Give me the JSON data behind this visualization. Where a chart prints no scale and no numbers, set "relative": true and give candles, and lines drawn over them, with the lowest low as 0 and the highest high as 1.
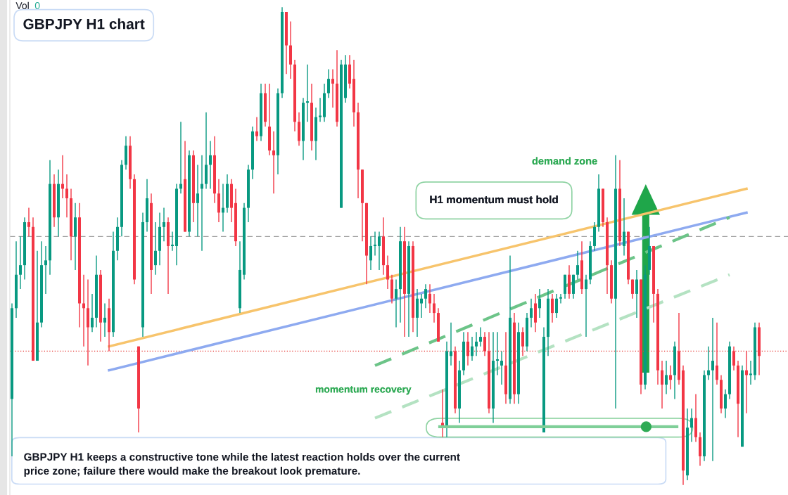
{
  "chart_data": {
    "type": "candlestick",
    "title": "GBPJPY H1 chart",
    "relative": true,
    "legend": false,
    "annotations": [
      "Vol",
      "0",
      "demand zone",
      "H1 momentum must hold",
      "momentum recovery",
      "GBPJPY H1 keeps a constructive tone while the latest reaction holds over the current price zone; failure there would make the breakout look premature."
    ],
    "categories": [
      null,
      null,
      null,
      null,
      null,
      null,
      null,
      null,
      null,
      null,
      null,
      null,
      null,
      null,
      null,
      null,
      null,
      null,
      null,
      null,
      null,
      null,
      null,
      null,
      null,
      null,
      null,
      null,
      null,
      null,
      null,
      null,
      null,
      null,
      null,
      null,
      null,
      null,
      null,
      null,
      null,
      null,
      null,
      null,
      null,
      null,
      null,
      null,
      null,
      null,
      null,
      null,
      null,
      null,
      null,
      null,
      null,
      null,
      null,
      null,
      null,
      null,
      null,
      null,
      null,
      null,
      null,
      null,
      null,
      null,
      null,
      null,
      null,
      null,
      null,
      null,
      null,
      null,
      null,
      null,
      null,
      null,
      null,
      null,
      null,
      null,
      null,
      null,
      null,
      null,
      null,
      null,
      null,
      null,
      null,
      null,
      null,
      null,
      null,
      null,
      null,
      null,
      null,
      null,
      null,
      null,
      null,
      null,
      null,
      null,
      null,
      null,
      null,
      null,
      null,
      null,
      null,
      null,
      null,
      null,
      null,
      null,
      null,
      null,
      null,
      null,
      null,
      null,
      null,
      null,
      null,
      null,
      null,
      null,
      null,
      null,
      null,
      null,
      null,
      null,
      null,
      null,
      null,
      null,
      null,
      null,
      null,
      null,
      null,
      null,
      null,
      null,
      null,
      null,
      null,
      null,
      null,
      null,
      null,
      null,
      null,
      null,
      null,
      null,
      null,
      null,
      null,
      null,
      null,
      null,
      null,
      null,
      null,
      null,
      null,
      null,
      null,
      null
    ],
    "ohlc": [
      [
        0.18,
        0.38,
        0.06,
        0.37
      ],
      [
        0.37,
        0.51,
        0.35,
        0.44
      ],
      [
        0.44,
        0.52,
        0.41,
        0.46
      ],
      [
        0.46,
        0.56,
        0.43,
        0.55
      ],
      [
        0.55,
        0.58,
        0.52,
        0.54
      ],
      [
        0.54,
        0.56,
        0.26,
        0.26
      ],
      [
        0.26,
        0.49,
        0.26,
        0.34
      ],
      [
        0.34,
        0.51,
        0.33,
        0.46
      ],
      [
        0.46,
        0.5,
        0.4,
        0.47
      ],
      [
        0.47,
        0.68,
        0.44,
        0.63
      ],
      [
        0.63,
        0.65,
        0.54,
        0.56
      ],
      [
        0.56,
        0.66,
        0.52,
        0.63
      ],
      [
        0.63,
        0.69,
        0.6,
        0.62
      ],
      [
        0.62,
        0.65,
        0.56,
        0.6
      ],
      [
        0.6,
        0.62,
        0.47,
        0.52
      ],
      [
        0.52,
        0.59,
        0.45,
        0.56
      ],
      [
        0.56,
        0.59,
        0.33,
        0.38
      ],
      [
        0.38,
        0.44,
        0.29,
        0.37
      ],
      [
        0.37,
        0.43,
        0.25,
        0.33
      ],
      [
        0.33,
        0.4,
        0.32,
        0.35
      ],
      [
        0.35,
        0.48,
        0.33,
        0.44
      ],
      [
        0.44,
        0.45,
        0.3,
        0.34
      ],
      [
        0.34,
        0.38,
        0.31,
        0.35
      ],
      [
        0.37,
        0.39,
        0.28,
        0.32
      ],
      [
        0.32,
        0.53,
        0.31,
        0.49
      ],
      [
        0.49,
        0.56,
        0.47,
        0.54
      ],
      [
        0.54,
        0.68,
        0.52,
        0.67
      ],
      [
        0.67,
        0.73,
        0.66,
        0.71
      ],
      [
        0.71,
        0.73,
        0.62,
        0.64
      ],
      [
        0.64,
        0.65,
        0.42,
        0.43
      ],
      [
        0.29,
        0.29,
        0.11,
        0.16
      ],
      [
        0.33,
        0.57,
        0.31,
        0.55
      ],
      [
        0.55,
        0.64,
        0.53,
        0.6
      ],
      [
        0.59,
        0.61,
        0.4,
        0.45
      ],
      [
        0.46,
        0.55,
        0.44,
        0.49
      ],
      [
        0.49,
        0.57,
        0.46,
        0.54
      ],
      [
        0.54,
        0.58,
        0.51,
        0.55
      ],
      [
        0.55,
        0.56,
        0.4,
        0.5
      ],
      [
        0.5,
        0.53,
        0.49,
        0.5
      ],
      [
        0.5,
        0.63,
        0.46,
        0.62
      ],
      [
        0.62,
        0.76,
        0.61,
        0.63
      ],
      [
        0.64,
        0.72,
        0.53,
        0.53
      ],
      [
        0.53,
        0.7,
        0.52,
        0.69
      ],
      [
        0.69,
        0.7,
        0.55,
        0.59
      ],
      [
        0.59,
        0.67,
        0.52,
        0.61
      ],
      [
        0.62,
        0.69,
        0.49,
        0.63
      ],
      [
        0.63,
        0.78,
        0.62,
        0.67
      ],
      [
        0.67,
        0.72,
        0.62,
        0.69
      ],
      [
        0.69,
        0.73,
        0.59,
        0.61
      ],
      [
        0.61,
        0.64,
        0.55,
        0.57
      ],
      [
        0.57,
        0.63,
        0.53,
        0.58
      ],
      [
        0.58,
        0.65,
        0.57,
        0.63
      ],
      [
        0.63,
        0.64,
        0.55,
        0.58
      ],
      [
        0.59,
        0.62,
        0.5,
        0.51
      ],
      [
        0.37,
        0.51,
        0.36,
        0.45
      ],
      [
        0.44,
        0.59,
        0.43,
        0.58
      ],
      [
        0.58,
        0.67,
        0.55,
        0.66
      ],
      [
        0.66,
        0.75,
        0.64,
        0.74
      ],
      [
        0.74,
        0.77,
        0.72,
        0.73
      ],
      [
        0.73,
        0.84,
        0.72,
        0.82
      ],
      [
        0.82,
        0.84,
        0.75,
        0.76
      ],
      [
        0.75,
        0.84,
        0.69,
        0.7
      ],
      [
        0.7,
        0.74,
        0.61,
        0.69
      ],
      [
        0.69,
        0.83,
        0.65,
        0.82
      ],
      [
        0.82,
        1.0,
        0.81,
        0.99
      ],
      [
        0.99,
        0.99,
        0.86,
        0.92
      ],
      [
        0.92,
        0.97,
        0.85,
        0.88
      ],
      [
        0.88,
        0.89,
        0.74,
        0.76
      ],
      [
        0.76,
        0.78,
        0.71,
        0.72
      ],
      [
        0.72,
        0.81,
        0.68,
        0.8
      ],
      [
        0.8,
        0.88,
        0.76,
        0.8
      ],
      [
        0.8,
        0.84,
        0.7,
        0.72
      ],
      [
        0.72,
        0.79,
        0.68,
        0.77
      ],
      [
        0.77,
        0.81,
        0.76,
        0.77
      ],
      [
        0.77,
        0.84,
        0.76,
        0.82
      ],
      [
        0.82,
        0.87,
        0.81,
        0.85
      ],
      [
        0.85,
        0.87,
        0.79,
        0.84
      ],
      [
        0.84,
        0.91,
        0.75,
        0.76
      ],
      [
        0.58,
        0.89,
        0.58,
        0.88
      ],
      [
        0.81,
        0.9,
        0.8,
        0.88
      ],
      [
        0.88,
        0.9,
        0.83,
        0.84
      ],
      [
        0.85,
        0.89,
        0.75,
        0.78
      ],
      [
        0.78,
        0.8,
        0.6,
        0.66
      ],
      [
        0.66,
        0.66,
        0.51,
        0.59
      ],
      [
        0.59,
        0.59,
        0.42,
        0.48
      ],
      [
        0.47,
        0.52,
        0.45,
        0.5
      ],
      [
        0.5,
        0.53,
        0.48,
        0.5
      ],
      [
        0.5,
        0.53,
        0.45,
        0.52
      ],
      [
        0.52,
        0.56,
        0.44,
        0.46
      ],
      [
        0.46,
        0.48,
        0.41,
        0.43
      ],
      [
        0.43,
        0.44,
        0.38,
        0.39
      ],
      [
        0.39,
        0.43,
        0.33,
        0.41
      ],
      [
        0.41,
        0.54,
        0.34,
        0.51
      ],
      [
        0.51,
        0.54,
        0.31,
        0.4
      ],
      [
        0.4,
        0.51,
        0.31,
        0.5
      ],
      [
        0.5,
        0.51,
        0.32,
        0.35
      ],
      [
        0.35,
        0.41,
        0.31,
        0.39
      ],
      [
        0.38,
        0.4,
        0.35,
        0.39
      ],
      [
        0.39,
        0.42,
        0.37,
        0.41
      ],
      [
        0.4,
        0.42,
        0.36,
        0.38
      ],
      [
        0.38,
        0.4,
        0.34,
        0.36
      ],
      [
        0.36,
        0.37,
        0.3,
        0.3
      ],
      [
        0.13,
        0.2,
        0.1,
        0.12
      ],
      [
        0.12,
        0.3,
        0.1,
        0.28
      ],
      [
        0.27,
        0.34,
        0.25,
        0.28
      ],
      [
        0.28,
        0.29,
        0.15,
        0.16
      ],
      [
        0.16,
        0.26,
        0.13,
        0.24
      ],
      [
        0.24,
        0.32,
        0.23,
        0.3
      ],
      [
        0.3,
        0.32,
        0.25,
        0.27
      ],
      [
        0.27,
        0.31,
        0.26,
        0.29
      ],
      [
        0.29,
        0.32,
        0.27,
        0.3
      ],
      [
        0.3,
        0.33,
        0.29,
        0.31
      ],
      [
        0.31,
        0.32,
        0.27,
        0.28
      ],
      [
        0.28,
        0.32,
        0.15,
        0.16
      ],
      [
        0.16,
        0.32,
        0.13,
        0.26
      ],
      [
        0.26,
        0.32,
        0.23,
        0.26
      ],
      [
        0.25,
        0.28,
        0.21,
        0.26
      ],
      [
        0.25,
        0.32,
        0.17,
        0.19
      ],
      [
        0.18,
        0.48,
        0.17,
        0.35
      ],
      [
        0.34,
        0.36,
        0.17,
        0.19
      ],
      [
        0.19,
        0.34,
        0.17,
        0.32
      ],
      [
        0.32,
        0.33,
        0.27,
        0.29
      ],
      [
        0.29,
        0.36,
        0.28,
        0.35
      ],
      [
        0.35,
        0.39,
        0.33,
        0.37
      ],
      [
        0.38,
        0.4,
        0.32,
        0.34
      ],
      [
        0.37,
        0.41,
        0.35,
        0.39
      ],
      [
        0.11,
        0.33,
        0.11,
        0.31
      ],
      [
        0.31,
        0.41,
        0.27,
        0.39
      ],
      [
        0.39,
        0.4,
        0.34,
        0.36
      ],
      [
        0.36,
        0.4,
        0.35,
        0.39
      ],
      [
        0.39,
        0.4,
        0.38,
        0.39
      ],
      [
        0.4,
        0.44,
        0.39,
        0.44
      ],
      [
        0.44,
        0.46,
        0.39,
        0.4
      ],
      [
        0.4,
        0.44,
        0.39,
        0.44
      ],
      [
        0.44,
        0.49,
        0.43,
        0.46
      ],
      [
        0.47,
        0.51,
        0.4,
        0.41
      ],
      [
        0.41,
        0.44,
        0.31,
        0.43
      ],
      [
        0.43,
        0.51,
        0.42,
        0.5
      ],
      [
        0.5,
        0.55,
        0.49,
        0.54
      ],
      [
        0.54,
        0.65,
        0.53,
        0.62
      ],
      [
        0.62,
        0.62,
        0.54,
        0.55
      ],
      [
        0.55,
        0.56,
        0.4,
        0.46
      ],
      [
        0.46,
        0.47,
        0.38,
        0.39
      ],
      [
        0.39,
        0.69,
        0.16,
        0.62
      ],
      [
        0.62,
        0.68,
        0.5,
        0.51
      ],
      [
        0.5,
        0.6,
        0.48,
        0.53
      ],
      [
        0.53,
        0.53,
        0.42,
        0.43
      ],
      [
        0.43,
        0.43,
        0.39,
        0.4
      ],
      [
        0.4,
        0.45,
        0.35,
        0.43
      ],
      [
        0.43,
        0.43,
        0.19,
        0.21
      ],
      [
        0.21,
        0.46,
        0.2,
        0.44
      ],
      [
        0.45,
        0.54,
        0.44,
        0.5
      ],
      [
        0.5,
        0.5,
        0.34,
        0.4
      ],
      [
        0.4,
        0.41,
        0.21,
        0.24
      ],
      [
        0.24,
        0.26,
        0.16,
        0.21
      ],
      [
        0.21,
        0.26,
        0.19,
        0.23
      ],
      [
        0.23,
        0.25,
        0.2,
        0.22
      ],
      [
        0.23,
        0.3,
        0.18,
        0.29
      ],
      [
        0.28,
        0.36,
        0.21,
        0.22
      ],
      [
        0.24,
        0.25,
        0.0,
        0.03
      ],
      [
        0.02,
        0.16,
        0.01,
        0.12
      ],
      [
        0.12,
        0.16,
        0.09,
        0.14
      ],
      [
        0.14,
        0.19,
        0.09,
        0.1
      ],
      [
        0.1,
        0.11,
        0.04,
        0.06
      ],
      [
        0.06,
        0.24,
        0.05,
        0.23
      ],
      [
        0.23,
        0.29,
        0.22,
        0.24
      ],
      [
        0.24,
        0.35,
        0.05,
        0.26
      ],
      [
        0.25,
        0.34,
        0.21,
        0.22
      ],
      [
        0.22,
        0.23,
        0.15,
        0.16
      ],
      [
        0.16,
        0.2,
        0.14,
        0.19
      ],
      [
        0.19,
        0.3,
        0.18,
        0.29
      ],
      [
        0.28,
        0.29,
        0.24,
        0.25
      ],
      [
        0.25,
        0.26,
        0.1,
        0.17
      ],
      [
        0.08,
        0.25,
        0.08,
        0.24
      ],
      [
        0.24,
        0.28,
        0.15,
        0.23
      ],
      [
        0.23,
        0.26,
        0.21,
        0.23
      ],
      [
        0.23,
        0.34,
        0.22,
        0.33
      ],
      [
        0.33,
        0.34,
        0.23,
        0.27
      ]
    ],
    "series": [
      {
        "type": "line",
        "color": "#f7c46c",
        "values": [
          null,
          null,
          null,
          null,
          null,
          null,
          null,
          null,
          null,
          null,
          null,
          null,
          null,
          null,
          null,
          null,
          null,
          null,
          null,
          null,
          null,
          null,
          null,
          0.29,
          null,
          null,
          null,
          null,
          null,
          null,
          null,
          null,
          null,
          null,
          null,
          null,
          null,
          null,
          null,
          null,
          null,
          null,
          null,
          null,
          null,
          null,
          null,
          null,
          null,
          null,
          null,
          null,
          null,
          null,
          null,
          null,
          null,
          null,
          null,
          null,
          null,
          null,
          null,
          null,
          null,
          null,
          null,
          null,
          null,
          null,
          null,
          null,
          null,
          null,
          null,
          null,
          null,
          null,
          null,
          null,
          null,
          null,
          null,
          null,
          null,
          null,
          null,
          null,
          null,
          null,
          null,
          null,
          null,
          null,
          null,
          null,
          null,
          null,
          null,
          null,
          null,
          null,
          null,
          null,
          null,
          null,
          null,
          null,
          null,
          null,
          null,
          null,
          null,
          null,
          null,
          null,
          null,
          null,
          null,
          null,
          null,
          null,
          null,
          null,
          null,
          null,
          null,
          null,
          null,
          null,
          null,
          null,
          null,
          null,
          null,
          null,
          null,
          null,
          null,
          null,
          null,
          null,
          null,
          null,
          null,
          null,
          null,
          null,
          null,
          null,
          null,
          null,
          null,
          null,
          null,
          null,
          null,
          null,
          null,
          null,
          null,
          null,
          null,
          null,
          null,
          null,
          null,
          null,
          null,
          null,
          null,
          null,
          null,
          null,
          0.62,
          null,
          null,
          null
        ]
      },
      {
        "type": "line",
        "color": "#8eaaf0",
        "values": [
          null,
          null,
          null,
          null,
          null,
          null,
          null,
          null,
          null,
          null,
          null,
          null,
          null,
          null,
          null,
          null,
          null,
          null,
          null,
          null,
          null,
          null,
          null,
          0.24,
          null,
          null,
          null,
          null,
          null,
          null,
          null,
          null,
          null,
          null,
          null,
          null,
          null,
          null,
          null,
          null,
          null,
          null,
          null,
          null,
          null,
          null,
          null,
          null,
          null,
          null,
          null,
          null,
          null,
          null,
          null,
          null,
          null,
          null,
          null,
          null,
          null,
          null,
          null,
          null,
          null,
          null,
          null,
          null,
          null,
          null,
          null,
          null,
          null,
          null,
          null,
          null,
          null,
          null,
          null,
          null,
          null,
          null,
          null,
          null,
          null,
          null,
          null,
          null,
          null,
          null,
          null,
          null,
          null,
          null,
          null,
          null,
          null,
          null,
          null,
          null,
          null,
          null,
          null,
          null,
          null,
          null,
          null,
          null,
          null,
          null,
          null,
          null,
          null,
          null,
          null,
          null,
          null,
          null,
          null,
          null,
          null,
          null,
          null,
          null,
          null,
          null,
          null,
          null,
          null,
          null,
          null,
          null,
          null,
          null,
          null,
          null,
          null,
          null,
          null,
          null,
          null,
          null,
          null,
          null,
          null,
          null,
          null,
          null,
          null,
          null,
          null,
          null,
          null,
          null,
          null,
          null,
          null,
          null,
          null,
          null,
          null,
          null,
          null,
          null,
          null,
          null,
          null,
          null,
          null,
          null,
          null,
          null,
          null,
          null,
          0.57,
          null,
          null,
          null
        ]
      },
      {
        "type": "line",
        "color": "#6cc488",
        "line_style": "dashed",
        "values": [
          null,
          null,
          null,
          null,
          null,
          null,
          null,
          null,
          null,
          null,
          null,
          null,
          null,
          null,
          null,
          null,
          null,
          null,
          null,
          null,
          null,
          null,
          null,
          null,
          null,
          null,
          null,
          null,
          null,
          null,
          null,
          null,
          null,
          null,
          null,
          null,
          null,
          null,
          null,
          null,
          null,
          null,
          null,
          null,
          null,
          null,
          null,
          null,
          null,
          null,
          null,
          null,
          null,
          null,
          null,
          null,
          null,
          null,
          null,
          null,
          null,
          null,
          null,
          null,
          null,
          null,
          null,
          null,
          null,
          null,
          null,
          null,
          null,
          null,
          null,
          null,
          null,
          null,
          null,
          null,
          null,
          null,
          null,
          null,
          null,
          null,
          0.25,
          null,
          null,
          null,
          null,
          null,
          null,
          null,
          null,
          null,
          null,
          null,
          null,
          null,
          null,
          null,
          null,
          null,
          null,
          null,
          null,
          null,
          null,
          null,
          null,
          null,
          null,
          null,
          null,
          null,
          null,
          null,
          null,
          null,
          null,
          null,
          null,
          null,
          null,
          null,
          null,
          null,
          null,
          null,
          null,
          null,
          null,
          null,
          null,
          null,
          null,
          null,
          null,
          null,
          null,
          null,
          null,
          null,
          null,
          null,
          null,
          null,
          null,
          null,
          null,
          null,
          null,
          null,
          null,
          null,
          null,
          null,
          null,
          null,
          null,
          null,
          null,
          null,
          null,
          null,
          null,
          null,
          null,
          null,
          0.56,
          null,
          null,
          null,
          null,
          null,
          null,
          null
        ]
      },
      {
        "type": "line",
        "color": "#b4e2c2",
        "line_style": "dashed",
        "values": [
          null,
          null,
          null,
          null,
          null,
          null,
          null,
          null,
          null,
          null,
          null,
          null,
          null,
          null,
          null,
          null,
          null,
          null,
          null,
          null,
          null,
          null,
          null,
          null,
          null,
          null,
          null,
          null,
          null,
          null,
          null,
          null,
          null,
          null,
          null,
          null,
          null,
          null,
          null,
          null,
          null,
          null,
          null,
          null,
          null,
          null,
          null,
          null,
          null,
          null,
          null,
          null,
          null,
          null,
          null,
          null,
          null,
          null,
          null,
          null,
          null,
          null,
          null,
          null,
          null,
          null,
          null,
          null,
          null,
          null,
          null,
          null,
          null,
          null,
          null,
          null,
          null,
          null,
          null,
          null,
          null,
          null,
          null,
          null,
          null,
          null,
          0.14,
          null,
          null,
          null,
          null,
          null,
          null,
          null,
          null,
          null,
          null,
          null,
          null,
          null,
          null,
          null,
          null,
          null,
          null,
          null,
          null,
          null,
          null,
          null,
          null,
          null,
          null,
          null,
          null,
          null,
          null,
          null,
          null,
          null,
          null,
          null,
          null,
          null,
          null,
          null,
          null,
          null,
          null,
          null,
          null,
          null,
          null,
          null,
          null,
          null,
          null,
          null,
          null,
          null,
          null,
          null,
          null,
          null,
          null,
          null,
          null,
          null,
          null,
          null,
          null,
          null,
          null,
          null,
          null,
          null,
          null,
          null,
          null,
          null,
          null,
          null,
          null,
          null,
          null,
          null,
          null,
          null,
          null,
          null,
          0.44,
          null,
          null,
          null,
          null,
          null,
          null,
          null
        ]
      }
    ],
    "ref_lines": [
      {
        "axis": "y",
        "value": 0.52,
        "color": "#9e9e9e",
        "line_style": "dashed"
      },
      {
        "axis": "y",
        "value": 0.28,
        "color": "#e53935",
        "line_style": "dotted"
      }
    ]
  }
}
